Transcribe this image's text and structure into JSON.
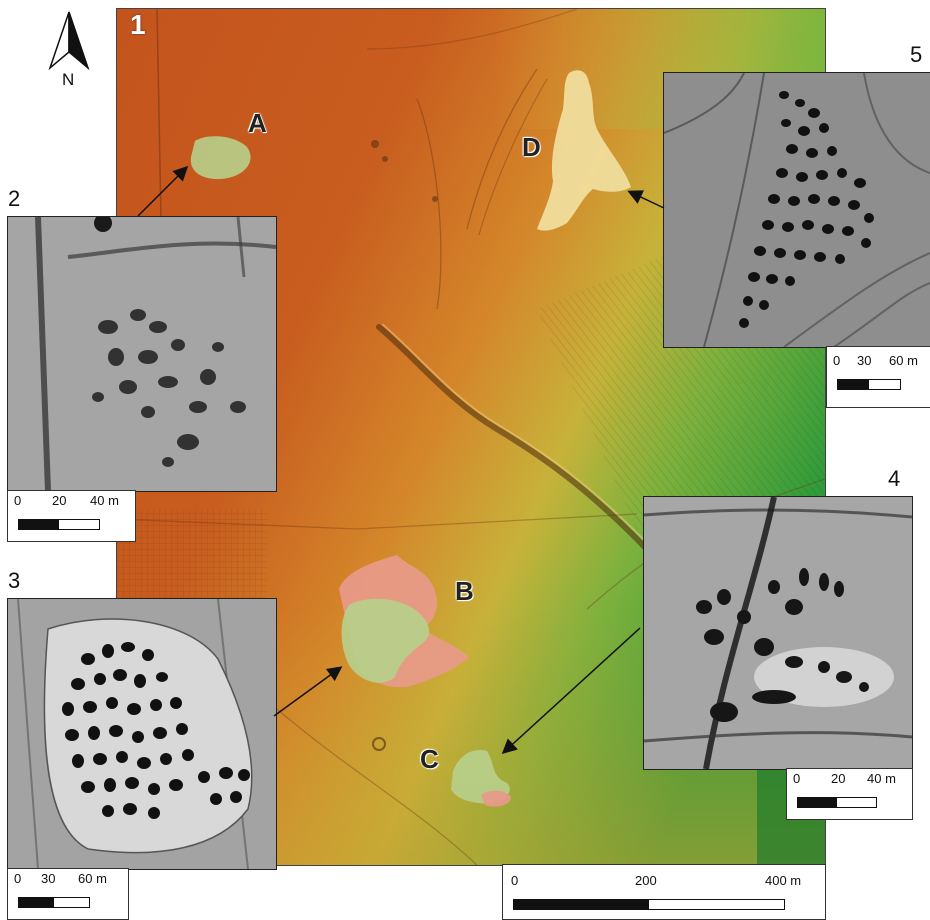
{
  "north_arrow": {
    "label": "N"
  },
  "panels": {
    "p1": "1",
    "p2": "2",
    "p3": "3",
    "p4": "4",
    "p5": "5"
  },
  "zones": [
    {
      "id": "A",
      "color": "#b7cf8a"
    },
    {
      "id": "B",
      "color": "#e89a8a"
    },
    {
      "id": "C",
      "color": "#b7cf8a"
    },
    {
      "id": "D",
      "color": "#f1dfa0"
    }
  ],
  "scales": {
    "main": {
      "ticks": [
        "0",
        "200",
        "400 m"
      ]
    },
    "inset2": {
      "ticks": [
        "0",
        "20",
        "40 m"
      ]
    },
    "inset3": {
      "ticks": [
        "0",
        "30",
        "60 m"
      ]
    },
    "inset4": {
      "ticks": [
        "0",
        "20",
        "40 m"
      ]
    },
    "inset5": {
      "ticks": [
        "0",
        "30",
        "60 m"
      ]
    }
  },
  "colors": {
    "high_elevation": "#c85a1e",
    "mid_elevation": "#d99a2e",
    "low_elevation": "#2f9b3a"
  }
}
